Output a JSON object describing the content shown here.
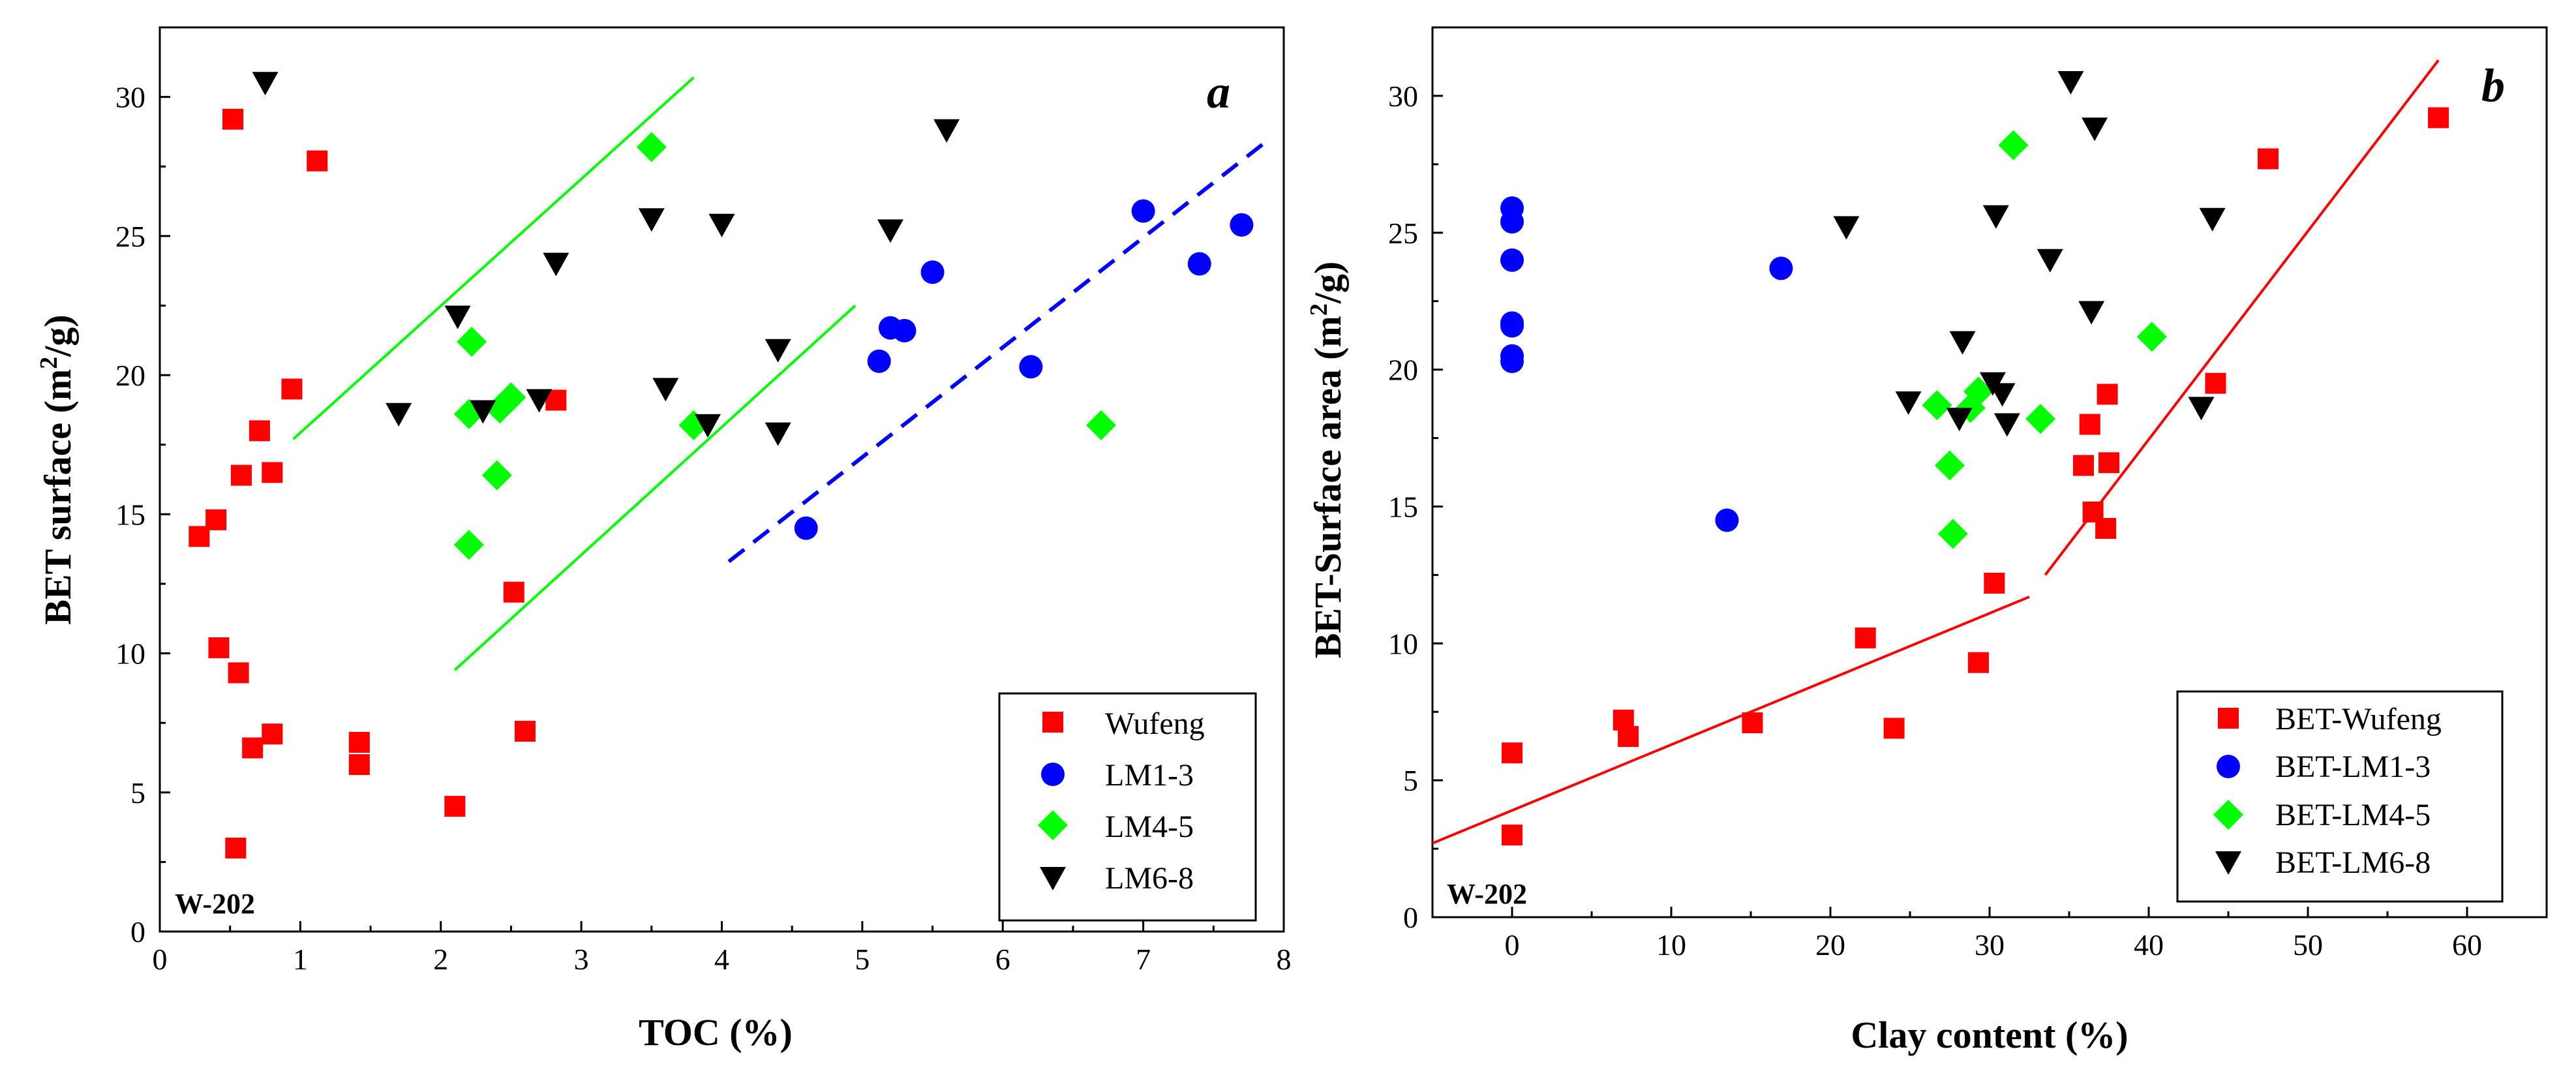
{
  "chart_data": [
    {
      "type": "scatter",
      "panel_label": "a",
      "well_label": "W-202",
      "xlabel": "TOC  (%)",
      "ylabel_main": "BET surface (m",
      "ylabel_sup": "2",
      "ylabel_tail": "/g)",
      "xlim": [
        0,
        8
      ],
      "ylim": [
        0,
        32.5
      ],
      "xticks": [
        0,
        1,
        2,
        3,
        4,
        5,
        6,
        7,
        8
      ],
      "yticks": [
        0,
        5,
        10,
        15,
        20,
        25,
        30
      ],
      "legend_position": "bottom-right",
      "grid": false,
      "series": [
        {
          "name": "Wufeng",
          "marker": "square",
          "color": "#ff0000",
          "points": [
            [
              0.28,
              14.2
            ],
            [
              0.4,
              14.8
            ],
            [
              0.42,
              10.2
            ],
            [
              0.52,
              29.2
            ],
            [
              0.54,
              3.0
            ],
            [
              0.56,
              9.3
            ],
            [
              0.58,
              16.4
            ],
            [
              0.66,
              6.6
            ],
            [
              0.71,
              18.0
            ],
            [
              0.8,
              16.5
            ],
            [
              0.8,
              7.1
            ],
            [
              0.94,
              19.5
            ],
            [
              1.12,
              27.7
            ],
            [
              1.42,
              6.8
            ],
            [
              1.42,
              6.0
            ],
            [
              2.1,
              4.5
            ],
            [
              2.52,
              12.2
            ],
            [
              2.6,
              7.2
            ],
            [
              2.82,
              19.1
            ]
          ]
        },
        {
          "name": "LM1-3",
          "marker": "circle",
          "color": "#0000ff",
          "points": [
            [
              4.6,
              14.5
            ],
            [
              5.12,
              20.5
            ],
            [
              5.2,
              21.7
            ],
            [
              5.3,
              21.6
            ],
            [
              5.5,
              23.7
            ],
            [
              6.2,
              20.3
            ],
            [
              7.0,
              25.9
            ],
            [
              7.4,
              24.0
            ],
            [
              7.7,
              25.4
            ]
          ]
        },
        {
          "name": "LM4-5",
          "marker": "diamond",
          "color": "#00ff00",
          "points": [
            [
              2.2,
              13.9
            ],
            [
              2.2,
              18.6
            ],
            [
              2.22,
              21.2
            ],
            [
              2.4,
              16.4
            ],
            [
              2.42,
              18.8
            ],
            [
              2.5,
              19.2
            ],
            [
              3.5,
              28.2
            ],
            [
              3.8,
              18.2
            ],
            [
              6.7,
              18.2
            ]
          ]
        },
        {
          "name": "LM6-8",
          "marker": "triangle-down",
          "color": "#000000",
          "points": [
            [
              0.75,
              30.5
            ],
            [
              1.7,
              18.6
            ],
            [
              2.12,
              22.1
            ],
            [
              2.3,
              18.7
            ],
            [
              2.7,
              19.1
            ],
            [
              2.82,
              24.0
            ],
            [
              3.5,
              25.6
            ],
            [
              3.6,
              19.5
            ],
            [
              3.9,
              18.2
            ],
            [
              4.0,
              25.4
            ],
            [
              4.4,
              17.9
            ],
            [
              4.4,
              20.9
            ],
            [
              5.2,
              25.2
            ],
            [
              5.6,
              28.8
            ]
          ]
        }
      ],
      "trend_lines": [
        {
          "color": "#00ff00",
          "style": "solid",
          "points": [
            [
              0.95,
              17.7
            ],
            [
              3.8,
              30.7
            ]
          ]
        },
        {
          "color": "#00ff00",
          "style": "solid",
          "points": [
            [
              2.1,
              9.4
            ],
            [
              4.95,
              22.5
            ]
          ]
        },
        {
          "color": "#0000ff",
          "style": "dashed",
          "points": [
            [
              4.05,
              13.3
            ],
            [
              7.85,
              28.3
            ]
          ]
        }
      ]
    },
    {
      "type": "scatter",
      "panel_label": "b",
      "well_label": "W-202",
      "xlabel": "Clay content (%)",
      "ylabel_main": "BET-Surface area (m",
      "ylabel_sup": "2",
      "ylabel_tail": "/g)",
      "xlim": [
        -5,
        65
      ],
      "ylim": [
        0,
        32.5
      ],
      "xticks": [
        0,
        10,
        20,
        30,
        40,
        50,
        60
      ],
      "yticks": [
        0,
        5,
        10,
        15,
        20,
        25,
        30
      ],
      "legend_position": "bottom-right",
      "grid": false,
      "series": [
        {
          "name": "BET-Wufeng",
          "marker": "square",
          "color": "#ff0000",
          "points": [
            [
              0,
              6.0
            ],
            [
              0,
              3.0
            ],
            [
              7,
              7.2
            ],
            [
              7.3,
              6.6
            ],
            [
              15.1,
              7.1
            ],
            [
              22.2,
              10.2
            ],
            [
              24,
              6.9
            ],
            [
              29.3,
              9.3
            ],
            [
              30.3,
              12.2
            ],
            [
              35.9,
              16.5
            ],
            [
              36.3,
              18.0
            ],
            [
              36.5,
              14.8
            ],
            [
              37.3,
              14.2
            ],
            [
              37.4,
              19.1
            ],
            [
              37.5,
              16.6
            ],
            [
              44.2,
              19.5
            ],
            [
              47.5,
              27.7
            ],
            [
              58.2,
              29.2
            ]
          ]
        },
        {
          "name": "BET-LM1-3",
          "marker": "circle",
          "color": "#0000ff",
          "points": [
            [
              0,
              25.9
            ],
            [
              0,
              25.4
            ],
            [
              0,
              24.0
            ],
            [
              0,
              21.7
            ],
            [
              0,
              21.6
            ],
            [
              0,
              20.5
            ],
            [
              0,
              20.3
            ],
            [
              13.5,
              14.5
            ],
            [
              16.9,
              23.7
            ]
          ]
        },
        {
          "name": "BET-LM4-5",
          "marker": "diamond",
          "color": "#00ff00",
          "points": [
            [
              26.7,
              18.7
            ],
            [
              27.5,
              16.5
            ],
            [
              27.7,
              14.0
            ],
            [
              28.8,
              18.6
            ],
            [
              29.3,
              19.2
            ],
            [
              31.5,
              28.2
            ],
            [
              33.2,
              18.2
            ],
            [
              40.2,
              21.2
            ]
          ]
        },
        {
          "name": "BET-LM6-8",
          "marker": "triangle-down",
          "color": "#000000",
          "points": [
            [
              21,
              25.2
            ],
            [
              24.9,
              18.8
            ],
            [
              28.1,
              18.2
            ],
            [
              28.3,
              21.0
            ],
            [
              30.2,
              19.5
            ],
            [
              30.4,
              25.6
            ],
            [
              30.8,
              19.1
            ],
            [
              31.1,
              18.0
            ],
            [
              33.8,
              24.0
            ],
            [
              35.1,
              30.5
            ],
            [
              36.4,
              22.1
            ],
            [
              36.6,
              28.8
            ],
            [
              43.3,
              18.6
            ],
            [
              44,
              25.5
            ]
          ]
        }
      ],
      "trend_lines": [
        {
          "color": "#ff0000",
          "style": "solid",
          "points": [
            [
              -5,
              2.7
            ],
            [
              32.5,
              11.7
            ]
          ]
        },
        {
          "color": "#ff0000",
          "style": "solid",
          "points": [
            [
              33.5,
              12.5
            ],
            [
              58.2,
              31.3
            ]
          ]
        }
      ]
    }
  ]
}
